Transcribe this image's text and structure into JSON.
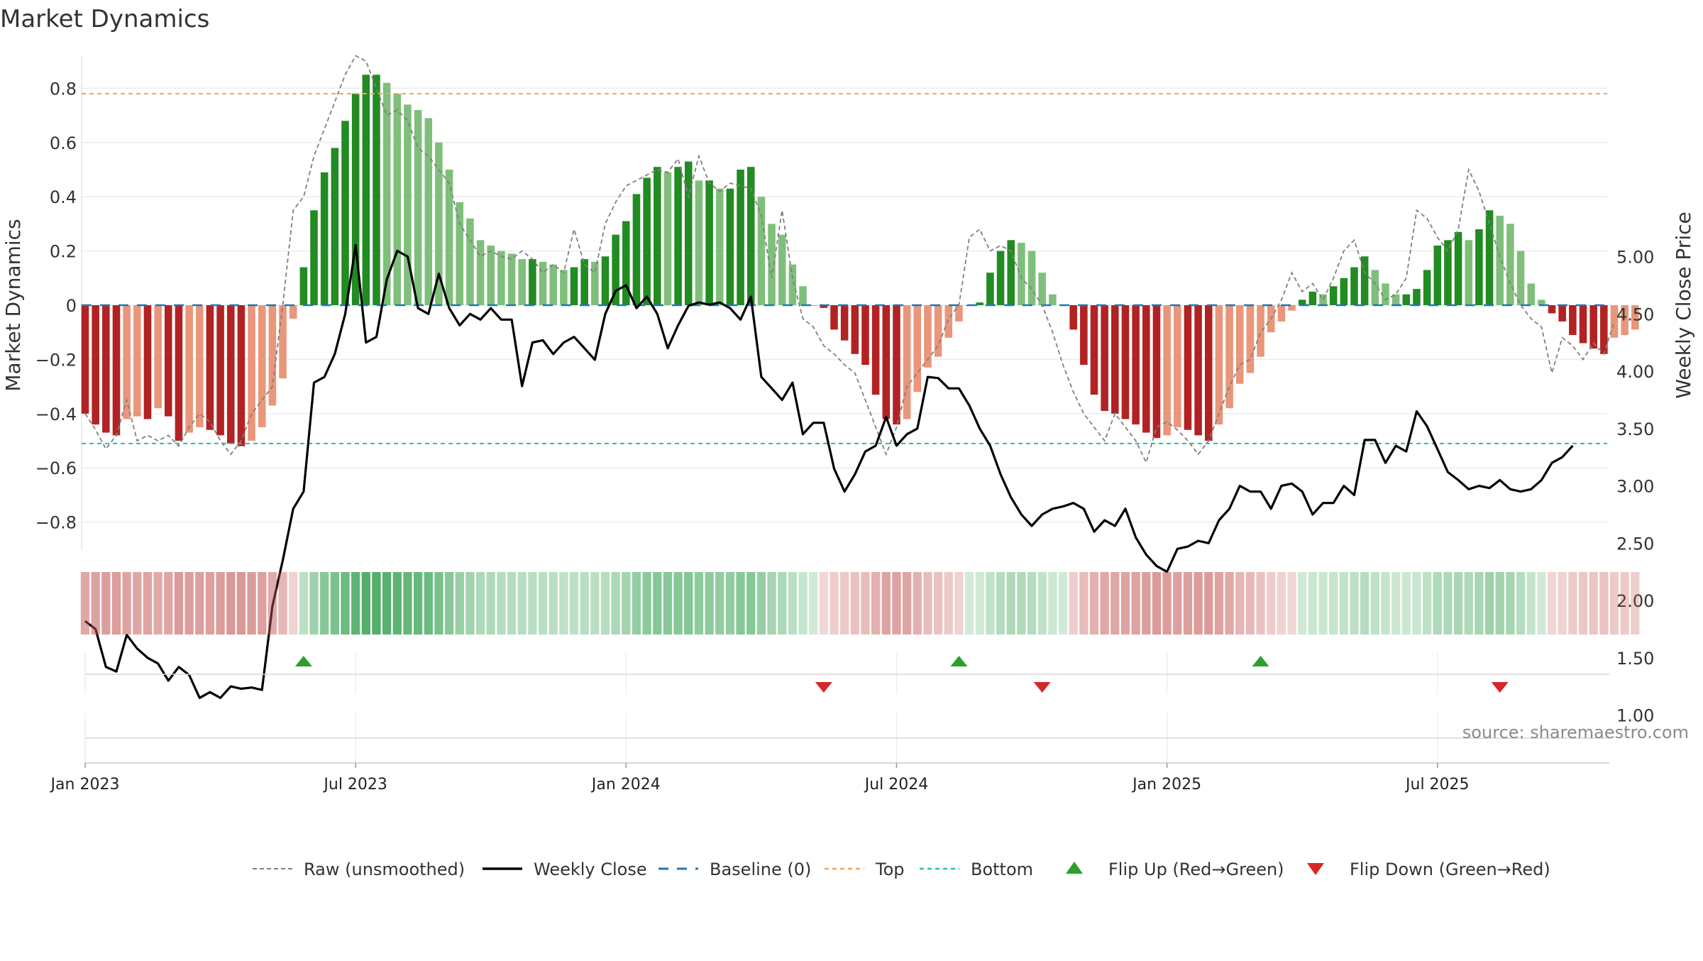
{
  "chart_data": {
    "type": "bar",
    "title": "Market Dynamics",
    "ylabel": "Market Dynamics",
    "y2label": "Weekly Close Price",
    "source": "source: sharemaestro.com",
    "ylim": [
      -0.92,
      0.92
    ],
    "y2lim": [
      0.9,
      5.35
    ],
    "yticks": [
      "0.8",
      "0.6",
      "0.4",
      "0.2",
      "0",
      "−0.2",
      "−0.4",
      "−0.6",
      "−0.8"
    ],
    "yticks_values": [
      0.8,
      0.6,
      0.4,
      0.2,
      0,
      -0.2,
      -0.4,
      -0.6,
      -0.8
    ],
    "y2ticks": [
      "5.00",
      "4.50",
      "4.00",
      "3.50",
      "3.00",
      "2.50",
      "2.00",
      "1.50",
      "1.00"
    ],
    "y2ticks_values": [
      5.0,
      4.5,
      4.0,
      3.5,
      3.0,
      2.5,
      2.0,
      1.5,
      1.0
    ],
    "xticks": [
      "Jan 2023",
      "Jul 2023",
      "Jan 2024",
      "Jul 2024",
      "Jan 2025",
      "Jul 2025"
    ],
    "xticks_week_index": [
      0,
      26,
      52,
      78,
      104,
      130
    ],
    "first_week": "Jan 2023",
    "top_level": 0.78,
    "bottom_level": -0.51,
    "baseline": 0,
    "grid": true,
    "legend_position": "bottom",
    "legend": [
      "Raw (unsmoothed)",
      "Weekly Close",
      "Baseline (0)",
      "Top",
      "Bottom",
      "Flip Up (Red→Green)",
      "Flip Down (Green→Red)"
    ],
    "colors": {
      "bar_green_dark": "#228b22",
      "bar_green_light": "#7fbf7b",
      "bar_red_dark": "#b22222",
      "bar_red_light": "#e9967a",
      "raw_line": "#808080",
      "close_line": "#000000",
      "baseline": "#1f77b4",
      "top": "#f4a460",
      "bottom": "#20c0b0",
      "flip_up": "#2ca02c",
      "flip_down": "#d62728",
      "strip_green": "#2e9e4a",
      "strip_red": "#c0504d"
    },
    "dynamics": [
      -0.4,
      -0.44,
      -0.47,
      -0.48,
      -0.42,
      -0.41,
      -0.42,
      -0.38,
      -0.41,
      -0.5,
      -0.47,
      -0.45,
      -0.46,
      -0.48,
      -0.51,
      -0.52,
      -0.5,
      -0.45,
      -0.37,
      -0.27,
      -0.05,
      0.14,
      0.35,
      0.49,
      0.58,
      0.68,
      0.78,
      0.85,
      0.85,
      0.82,
      0.78,
      0.74,
      0.72,
      0.69,
      0.6,
      0.5,
      0.38,
      0.32,
      0.24,
      0.22,
      0.2,
      0.19,
      0.17,
      0.17,
      0.16,
      0.15,
      0.13,
      0.14,
      0.17,
      0.16,
      0.18,
      0.26,
      0.31,
      0.41,
      0.47,
      0.51,
      0.49,
      0.51,
      0.53,
      0.46,
      0.46,
      0.43,
      0.43,
      0.5,
      0.51,
      0.4,
      0.3,
      0.26,
      0.15,
      0.07,
      0.0,
      -0.01,
      -0.09,
      -0.13,
      -0.18,
      -0.22,
      -0.33,
      -0.42,
      -0.44,
      -0.42,
      -0.32,
      -0.23,
      -0.19,
      -0.12,
      -0.06,
      0.0,
      0.01,
      0.12,
      0.2,
      0.24,
      0.23,
      0.2,
      0.12,
      0.04,
      0.0,
      -0.09,
      -0.22,
      -0.33,
      -0.39,
      -0.4,
      -0.42,
      -0.44,
      -0.47,
      -0.49,
      -0.48,
      -0.45,
      -0.46,
      -0.48,
      -0.5,
      -0.44,
      -0.38,
      -0.29,
      -0.25,
      -0.19,
      -0.1,
      -0.06,
      -0.02,
      0.02,
      0.05,
      0.04,
      0.07,
      0.1,
      0.14,
      0.18,
      0.13,
      0.08,
      0.04,
      0.04,
      0.06,
      0.13,
      0.22,
      0.24,
      0.27,
      0.24,
      0.28,
      0.35,
      0.33,
      0.3,
      0.2,
      0.08,
      0.02,
      -0.03,
      -0.06,
      -0.11,
      -0.14,
      -0.16,
      -0.18,
      -0.12,
      -0.11,
      -0.09
    ],
    "raw": [
      -0.4,
      -0.46,
      -0.53,
      -0.48,
      -0.35,
      -0.5,
      -0.48,
      -0.5,
      -0.48,
      -0.52,
      -0.45,
      -0.4,
      -0.43,
      -0.5,
      -0.55,
      -0.5,
      -0.4,
      -0.35,
      -0.3,
      0.0,
      0.35,
      0.4,
      0.55,
      0.65,
      0.75,
      0.85,
      0.92,
      0.9,
      0.8,
      0.7,
      0.72,
      0.68,
      0.58,
      0.55,
      0.5,
      0.45,
      0.3,
      0.24,
      0.18,
      0.2,
      0.18,
      0.17,
      0.2,
      0.17,
      0.12,
      0.15,
      0.12,
      0.28,
      0.15,
      0.12,
      0.3,
      0.38,
      0.44,
      0.46,
      0.48,
      0.5,
      0.49,
      0.54,
      0.4,
      0.55,
      0.45,
      0.42,
      0.45,
      0.44,
      0.43,
      0.33,
      0.1,
      0.35,
      0.1,
      -0.05,
      -0.08,
      -0.15,
      -0.18,
      -0.22,
      -0.25,
      -0.35,
      -0.45,
      -0.55,
      -0.45,
      -0.3,
      -0.25,
      -0.2,
      -0.15,
      -0.05,
      0.0,
      0.25,
      0.28,
      0.2,
      0.22,
      0.2,
      0.1,
      0.06,
      0.0,
      -0.1,
      -0.22,
      -0.32,
      -0.4,
      -0.45,
      -0.5,
      -0.4,
      -0.45,
      -0.5,
      -0.58,
      -0.45,
      -0.43,
      -0.46,
      -0.5,
      -0.55,
      -0.5,
      -0.4,
      -0.3,
      -0.22,
      -0.2,
      -0.1,
      -0.05,
      0.02,
      0.12,
      0.05,
      0.08,
      0.02,
      0.1,
      0.2,
      0.24,
      0.12,
      0.08,
      0.02,
      0.04,
      0.1,
      0.35,
      0.32,
      0.25,
      0.2,
      0.28,
      0.5,
      0.42,
      0.3,
      0.18,
      0.08,
      0.0,
      -0.05,
      -0.08,
      -0.25,
      -0.12,
      -0.15,
      -0.2,
      -0.14,
      -0.18,
      -0.06
    ],
    "close": [
      1.82,
      1.75,
      1.42,
      1.38,
      1.7,
      1.58,
      1.5,
      1.45,
      1.3,
      1.42,
      1.35,
      1.15,
      1.2,
      1.15,
      1.25,
      1.23,
      1.24,
      1.22,
      1.95,
      2.35,
      2.8,
      2.95,
      3.9,
      3.95,
      4.15,
      4.5,
      5.1,
      4.25,
      4.3,
      4.8,
      5.05,
      5.0,
      4.55,
      4.5,
      4.85,
      4.55,
      4.4,
      4.5,
      4.45,
      4.55,
      4.45,
      4.45,
      3.87,
      4.25,
      4.27,
      4.15,
      4.25,
      4.3,
      4.2,
      4.1,
      4.5,
      4.7,
      4.75,
      4.55,
      4.65,
      4.5,
      4.2,
      4.4,
      4.57,
      4.6,
      4.58,
      4.6,
      4.55,
      4.45,
      4.65,
      3.95,
      3.85,
      3.75,
      3.9,
      3.45,
      3.55,
      3.55,
      3.15,
      2.95,
      3.1,
      3.3,
      3.35,
      3.6,
      3.35,
      3.45,
      3.5,
      3.95,
      3.94,
      3.85,
      3.85,
      3.7,
      3.5,
      3.35,
      3.1,
      2.9,
      2.75,
      2.65,
      2.75,
      2.8,
      2.82,
      2.85,
      2.8,
      2.6,
      2.7,
      2.65,
      2.8,
      2.55,
      2.4,
      2.3,
      2.25,
      2.45,
      2.47,
      2.52,
      2.5,
      2.7,
      2.8,
      3.0,
      2.95,
      2.95,
      2.8,
      3.0,
      3.02,
      2.95,
      2.75,
      2.85,
      2.85,
      3.0,
      2.92,
      3.4,
      3.4,
      3.2,
      3.35,
      3.3,
      3.65,
      3.52,
      3.32,
      3.12,
      3.05,
      2.97,
      3.0,
      2.98,
      3.05,
      2.97,
      2.95,
      2.97,
      3.05,
      3.2,
      3.25,
      3.35
    ],
    "flips": [
      {
        "type": "up",
        "week": 21
      },
      {
        "type": "down",
        "week": 71
      },
      {
        "type": "up",
        "week": 84
      },
      {
        "type": "down",
        "week": 92
      },
      {
        "type": "up",
        "week": 113
      },
      {
        "type": "down",
        "week": 136
      }
    ]
  }
}
